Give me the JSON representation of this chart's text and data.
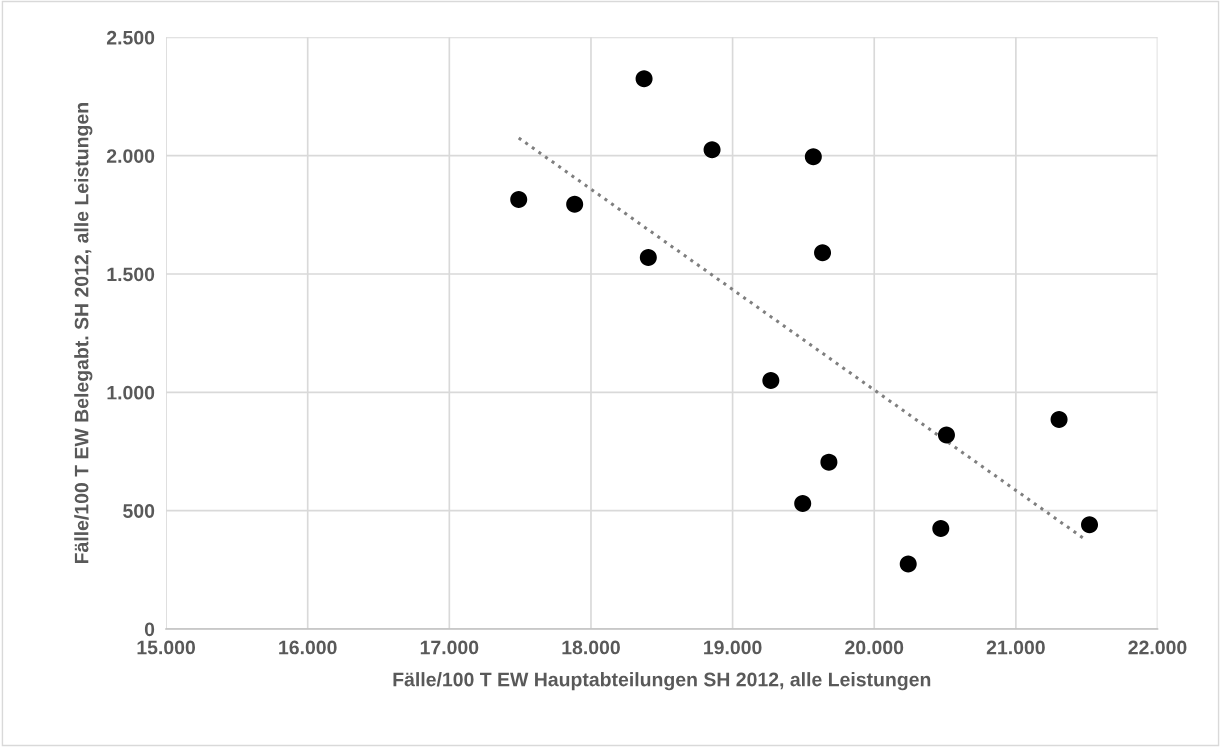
{
  "chart_data": {
    "type": "scatter",
    "xlabel": "Fälle/100 T EW Hauptabteilungen SH 2012, alle Leistungen",
    "ylabel": "Fälle/100 T EW Belegabt. SH 2012, alle Leistungen",
    "xlim": [
      15000,
      22000
    ],
    "ylim": [
      0,
      2500
    ],
    "xticks": [
      {
        "value": 15000,
        "label": "15.000"
      },
      {
        "value": 16000,
        "label": "16.000"
      },
      {
        "value": 17000,
        "label": "17.000"
      },
      {
        "value": 18000,
        "label": "18.000"
      },
      {
        "value": 19000,
        "label": "19.000"
      },
      {
        "value": 20000,
        "label": "20.000"
      },
      {
        "value": 21000,
        "label": "21.000"
      },
      {
        "value": 22000,
        "label": "22.000"
      }
    ],
    "yticks": [
      0,
      {
        "value": 500,
        "label": "500"
      },
      {
        "value": 1000,
        "label": "1.000"
      },
      {
        "value": 1500,
        "label": "1.500"
      },
      {
        "value": 2000,
        "label": "2.000"
      },
      {
        "value": 2500,
        "label": "2.500"
      }
    ],
    "grid": true,
    "marker": "circle",
    "series": [
      {
        "color": "#000000",
        "x": [
          17490,
          17885,
          18375,
          18405,
          18855,
          19570,
          19635,
          19270,
          19680,
          19495,
          20510,
          21305,
          20470,
          20240,
          21520
        ],
        "values": [
          1815,
          1795,
          2325,
          1570,
          2025,
          1995,
          1590,
          1050,
          705,
          530,
          820,
          885,
          425,
          275,
          440
        ]
      },
      {
        "type": "line",
        "color": "#7f7f7f",
        "line_style": "dotted",
        "marker": "none",
        "x": [
          17490,
          21485
        ],
        "values": [
          2075,
          380
        ]
      }
    ]
  }
}
